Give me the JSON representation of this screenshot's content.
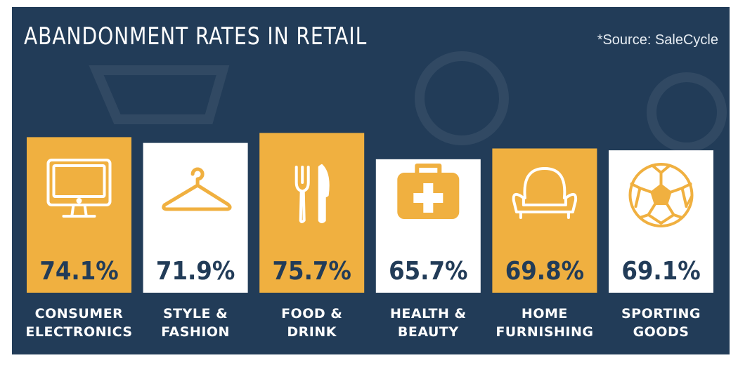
{
  "title": "ABANDONMENT RATES IN RETAIL",
  "source": "*Source: SaleCycle",
  "colors": {
    "background": "#223c58",
    "accent": "#f0b040",
    "light": "#ffffff",
    "text_dark": "#223c58"
  },
  "chart_data": {
    "type": "bar",
    "title": "ABANDONMENT RATES IN RETAIL",
    "categories": [
      [
        "CONSUMER",
        "ELECTRONICS"
      ],
      [
        "STYLE &",
        "FASHION"
      ],
      [
        "FOOD &",
        "DRINK"
      ],
      [
        "HEALTH &",
        "BEAUTY"
      ],
      [
        "HOME",
        "FURNISHING"
      ],
      [
        "SPORTING",
        "GOODS"
      ]
    ],
    "values": [
      74.1,
      71.9,
      75.7,
      65.7,
      69.8,
      69.1
    ],
    "value_labels": [
      "74.1%",
      "71.9%",
      "75.7%",
      "65.7%",
      "69.8%",
      "69.1%"
    ],
    "bar_styles": [
      "accent",
      "light",
      "accent",
      "light",
      "accent",
      "light"
    ],
    "icons": [
      "monitor-icon",
      "hanger-icon",
      "fork-knife-icon",
      "first-aid-kit-icon",
      "armchair-icon",
      "soccer-ball-icon"
    ],
    "ylim": [
      0,
      80
    ],
    "grid": false,
    "legend": "none"
  }
}
